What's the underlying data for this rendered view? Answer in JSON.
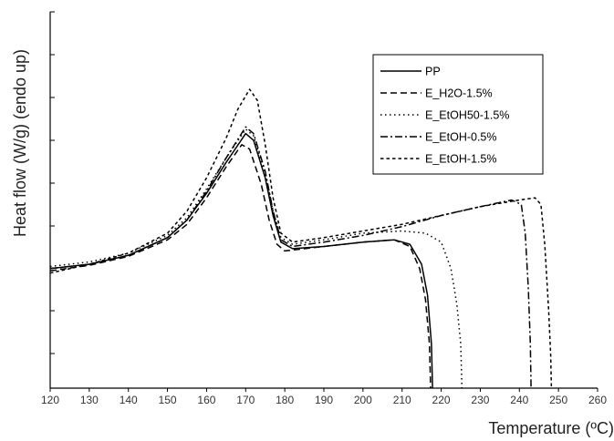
{
  "chart_data": {
    "type": "line",
    "title": "",
    "xlabel": "Temperature (ºC)",
    "ylabel": "Heat flow (W/g) (endo up)",
    "xlim": [
      120,
      260
    ],
    "x_ticks": [
      120,
      130,
      140,
      150,
      160,
      170,
      180,
      190,
      200,
      210,
      220,
      230,
      240,
      250,
      260
    ],
    "y_tick_labels_shown": false,
    "grid": false,
    "legend_position": "top-right",
    "series": [
      {
        "name": "PP",
        "dash": "solid",
        "color": "#000000",
        "points": [
          [
            120,
            0.4
          ],
          [
            130,
            0.6
          ],
          [
            140,
            1.0
          ],
          [
            150,
            1.8
          ],
          [
            155,
            2.6
          ],
          [
            160,
            3.8
          ],
          [
            165,
            5.2
          ],
          [
            170,
            6.5
          ],
          [
            172,
            6.2
          ],
          [
            175,
            4.5
          ],
          [
            177,
            2.8
          ],
          [
            179,
            1.6
          ],
          [
            182,
            1.3
          ],
          [
            190,
            1.4
          ],
          [
            200,
            1.6
          ],
          [
            208,
            1.7
          ],
          [
            212,
            1.5
          ],
          [
            215,
            0.6
          ],
          [
            216.5,
            -0.8
          ],
          [
            217.5,
            -3.0
          ],
          [
            217.8,
            -5.0
          ]
        ]
      },
      {
        "name": "E_H2O-1.5%",
        "dash": "dashed",
        "color": "#000000",
        "points": [
          [
            120,
            0.3
          ],
          [
            130,
            0.55
          ],
          [
            140,
            0.95
          ],
          [
            150,
            1.7
          ],
          [
            155,
            2.4
          ],
          [
            160,
            3.6
          ],
          [
            165,
            5.0
          ],
          [
            169,
            6.0
          ],
          [
            171,
            5.8
          ],
          [
            174,
            4.2
          ],
          [
            176,
            2.6
          ],
          [
            178,
            1.5
          ],
          [
            180,
            1.2
          ],
          [
            190,
            1.4
          ],
          [
            200,
            1.6
          ],
          [
            208,
            1.7
          ],
          [
            212,
            1.4
          ],
          [
            214.5,
            0.4
          ],
          [
            216,
            -1.0
          ],
          [
            217,
            -3.0
          ],
          [
            217.3,
            -5.0
          ]
        ]
      },
      {
        "name": "E_EtOH50-1.5%",
        "dash": "dotted",
        "color": "#000000",
        "points": [
          [
            120,
            0.5
          ],
          [
            130,
            0.7
          ],
          [
            140,
            1.1
          ],
          [
            150,
            1.9
          ],
          [
            155,
            2.7
          ],
          [
            160,
            4.0
          ],
          [
            165,
            5.4
          ],
          [
            170,
            6.7
          ],
          [
            172,
            6.4
          ],
          [
            175,
            4.7
          ],
          [
            177,
            3.0
          ],
          [
            179,
            1.8
          ],
          [
            182,
            1.5
          ],
          [
            190,
            1.7
          ],
          [
            200,
            2.0
          ],
          [
            210,
            2.1
          ],
          [
            216,
            2.0
          ],
          [
            220,
            1.6
          ],
          [
            222.5,
            0.4
          ],
          [
            224,
            -1.2
          ],
          [
            225,
            -3.0
          ],
          [
            225.3,
            -5.0
          ]
        ]
      },
      {
        "name": "E_EtOH-0.5%",
        "dash": "dashdot",
        "color": "#000000",
        "points": [
          [
            120,
            0.4
          ],
          [
            130,
            0.6
          ],
          [
            140,
            1.0
          ],
          [
            150,
            1.8
          ],
          [
            155,
            2.6
          ],
          [
            160,
            3.9
          ],
          [
            165,
            5.4
          ],
          [
            170,
            6.8
          ],
          [
            172,
            6.5
          ],
          [
            175,
            4.8
          ],
          [
            177,
            3.0
          ],
          [
            179,
            1.7
          ],
          [
            182,
            1.4
          ],
          [
            190,
            1.6
          ],
          [
            200,
            1.9
          ],
          [
            210,
            2.3
          ],
          [
            220,
            2.8
          ],
          [
            230,
            3.2
          ],
          [
            238,
            3.5
          ],
          [
            240.5,
            3.3
          ],
          [
            241.5,
            2.0
          ],
          [
            242.3,
            -0.5
          ],
          [
            242.8,
            -3.0
          ],
          [
            243,
            -5.0
          ]
        ]
      },
      {
        "name": "E_EtOH-1.5%",
        "dash": "shortdash",
        "color": "#000000",
        "points": [
          [
            120,
            0.2
          ],
          [
            130,
            0.6
          ],
          [
            140,
            1.1
          ],
          [
            150,
            2.0
          ],
          [
            155,
            3.0
          ],
          [
            160,
            4.5
          ],
          [
            165,
            6.3
          ],
          [
            168,
            7.6
          ],
          [
            171,
            8.5
          ],
          [
            173,
            8.0
          ],
          [
            175,
            6.0
          ],
          [
            177,
            3.6
          ],
          [
            179,
            2.0
          ],
          [
            182,
            1.6
          ],
          [
            190,
            1.8
          ],
          [
            200,
            2.1
          ],
          [
            210,
            2.4
          ],
          [
            220,
            2.8
          ],
          [
            230,
            3.2
          ],
          [
            240,
            3.5
          ],
          [
            244,
            3.6
          ],
          [
            245.5,
            3.3
          ],
          [
            246.5,
            1.5
          ],
          [
            247.5,
            -1.5
          ],
          [
            248,
            -3.5
          ],
          [
            248.2,
            -5.0
          ]
        ]
      }
    ]
  }
}
